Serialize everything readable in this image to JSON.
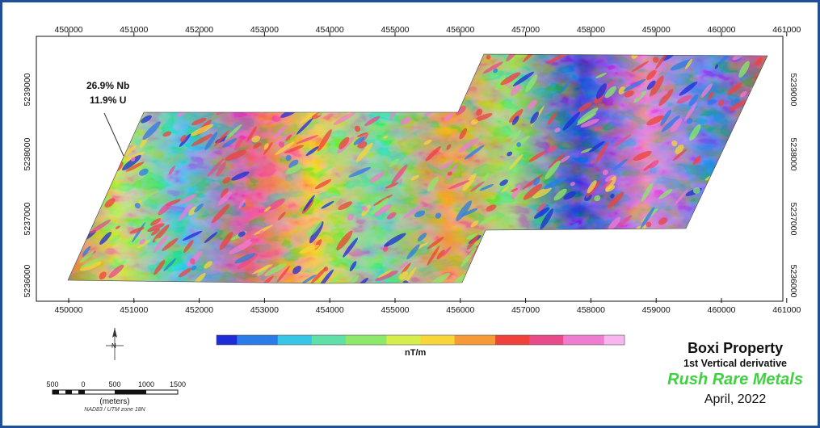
{
  "map": {
    "x_ticks": [
      "450000",
      "451000",
      "452000",
      "453000",
      "454000",
      "455000",
      "456000",
      "457000",
      "458000",
      "459000",
      "460000",
      "461000"
    ],
    "y_ticks": [
      "5239000",
      "5238000",
      "5237000",
      "5236000"
    ],
    "annotation": {
      "line1": "26.9% Nb",
      "line2": "11.9% U"
    }
  },
  "legend": {
    "unit": "nT/m",
    "colors": [
      "#1e2cd8",
      "#2b7be8",
      "#38c6e8",
      "#5fe0a8",
      "#8ee86a",
      "#d5ee4c",
      "#f7d63a",
      "#f59a36",
      "#f0413b",
      "#e94a8a",
      "#f07cd0",
      "#f7b6ee"
    ]
  },
  "scale_bar": {
    "labels": [
      "500",
      "0",
      "500",
      "1000",
      "1500"
    ],
    "unit": "(meters)",
    "datum": "NAD83 / UTM zone 18N"
  },
  "north_arrow": {
    "label": "N"
  },
  "title_block": {
    "property": "Boxi Property",
    "subtitle": "1st Vertical derivative",
    "company": "Rush Rare Metals",
    "date": "April, 2022",
    "company_color": "#3fd13f"
  }
}
